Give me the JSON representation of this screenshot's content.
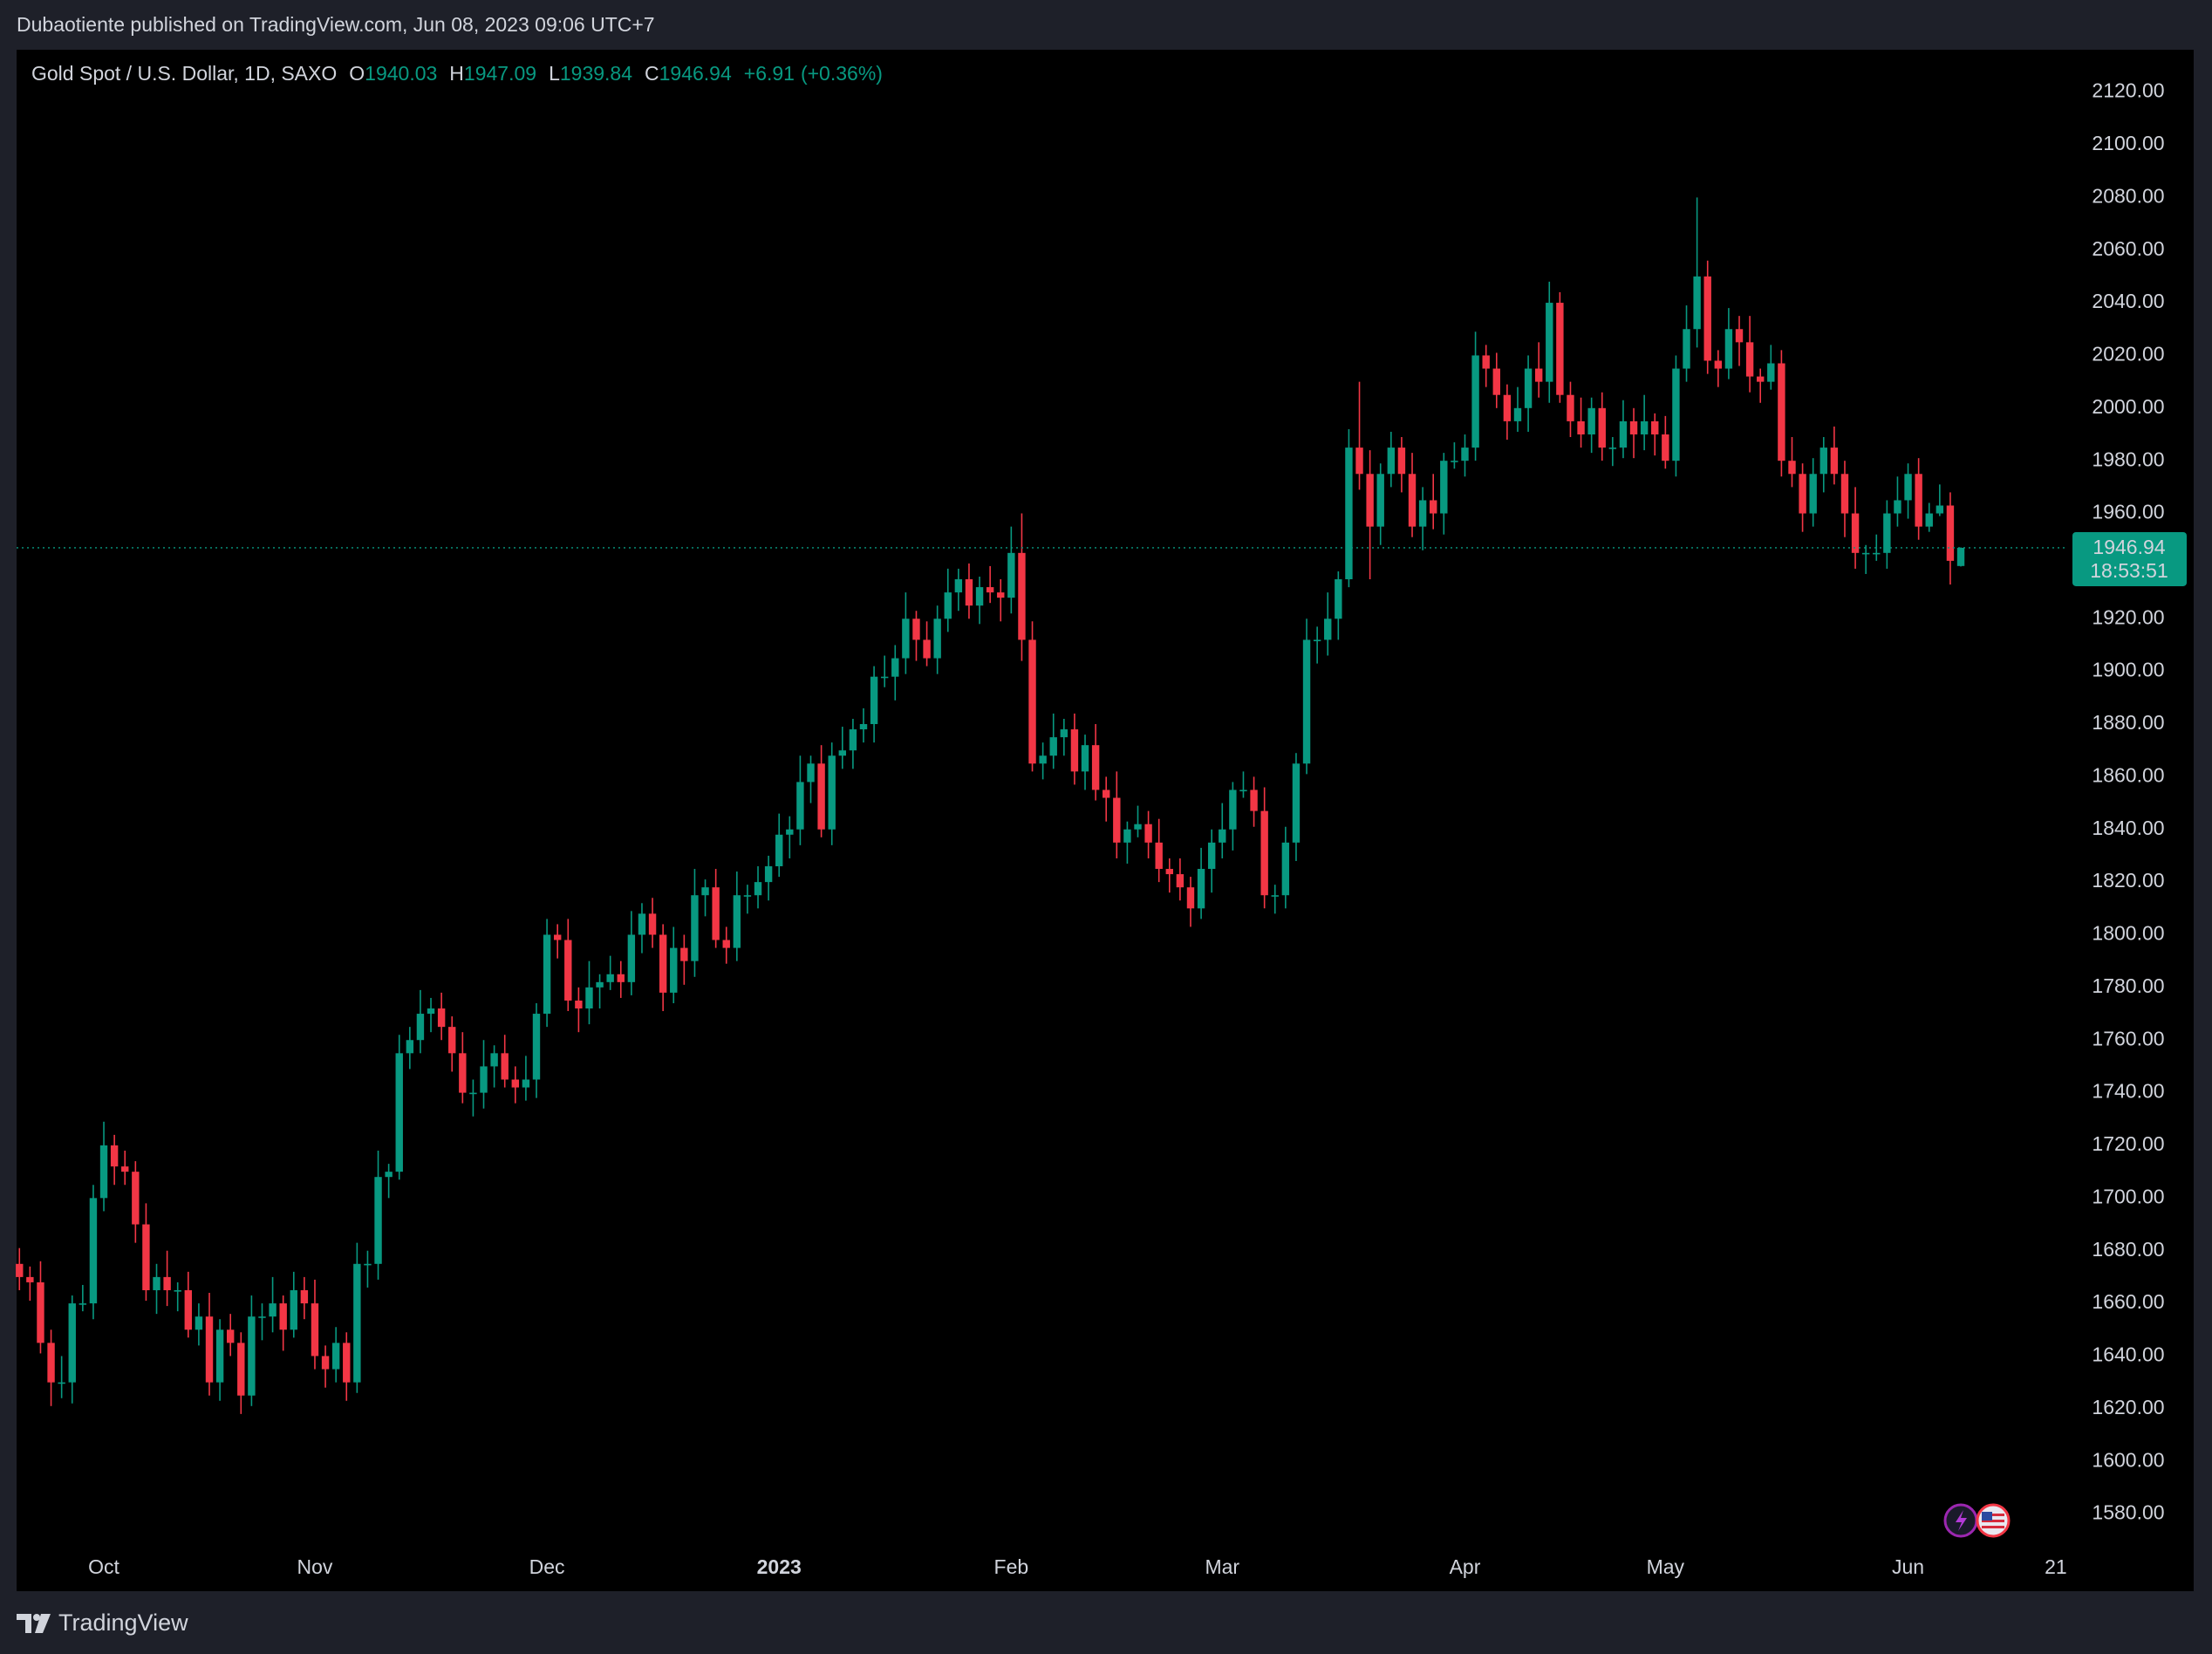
{
  "header": {
    "published": "Dubaotiente published on TradingView.com, Jun 08, 2023 09:06 UTC+7"
  },
  "footer": {
    "brand": "TradingView"
  },
  "chart_data": {
    "type": "candlestick",
    "title": "Gold Spot / U.S. Dollar, 1D, SAXO",
    "legend_labels": [
      "O",
      "H",
      "L",
      "C"
    ],
    "change": "+6.91",
    "change_percent": "(+0.36%)",
    "countdown": "18:53:51",
    "up_color": "#089981",
    "down_color": "#f23645",
    "open": [
      1675,
      1670,
      1668,
      1645,
      1630,
      1630,
      1660,
      1660,
      1700,
      1720,
      1712,
      1710,
      1690,
      1665,
      1670,
      1665,
      1665,
      1650,
      1655,
      1630,
      1650,
      1645,
      1625,
      1655,
      1655,
      1660,
      1650,
      1665,
      1660,
      1640,
      1635,
      1645,
      1630,
      1675,
      1675,
      1708,
      1710,
      1755,
      1760,
      1770,
      1772,
      1765,
      1755,
      1740,
      1740,
      1750,
      1755,
      1745,
      1742,
      1745,
      1770,
      1800,
      1798,
      1775,
      1772,
      1780,
      1782,
      1785,
      1782,
      1800,
      1808,
      1800,
      1778,
      1795,
      1790,
      1815,
      1818,
      1798,
      1795,
      1815,
      1815,
      1820,
      1826,
      1838,
      1840,
      1858,
      1865,
      1840,
      1868,
      1870,
      1878,
      1880,
      1898,
      1898,
      1905,
      1920,
      1912,
      1905,
      1920,
      1930,
      1935,
      1925,
      1932,
      1930,
      1928,
      1945,
      1912,
      1865,
      1868,
      1875,
      1878,
      1862,
      1872,
      1855,
      1852,
      1835,
      1840,
      1842,
      1835,
      1825,
      1823,
      1818,
      1810,
      1825,
      1835,
      1840,
      1855,
      1855,
      1847,
      1815,
      1815,
      1835,
      1865,
      1912,
      1912,
      1920,
      1935,
      1985,
      1975,
      1955,
      1975,
      1985,
      1975,
      1955,
      1965,
      1960,
      1980,
      1980,
      1985,
      2020,
      2015,
      2005,
      1995,
      2000,
      2015,
      2010,
      2040,
      2005,
      1995,
      1990,
      2000,
      1985,
      1985,
      1995,
      1990,
      1995,
      1990,
      1980,
      2015,
      2030,
      2050,
      2018,
      2015,
      2030,
      2025,
      2012,
      2010,
      2017,
      1980,
      1975,
      1960,
      1975,
      1985,
      1975,
      1960,
      1945,
      1945,
      1945,
      1960,
      1965,
      1975,
      1955,
      1960,
      1963,
      1940.03
    ],
    "high": [
      1681,
      1674,
      1676,
      1650,
      1640,
      1663,
      1667,
      1705,
      1729,
      1724,
      1718,
      1714,
      1698,
      1675,
      1680,
      1668,
      1672,
      1660,
      1664,
      1654,
      1656,
      1649,
      1663,
      1660,
      1670,
      1663,
      1672,
      1670,
      1669,
      1644,
      1651,
      1649,
      1683,
      1680,
      1718,
      1713,
      1762,
      1765,
      1779,
      1776,
      1778,
      1769,
      1763,
      1745,
      1760,
      1758,
      1762,
      1750,
      1754,
      1774,
      1806,
      1804,
      1806,
      1780,
      1790,
      1785,
      1792,
      1790,
      1809,
      1812,
      1814,
      1804,
      1803,
      1800,
      1825,
      1821,
      1825,
      1803,
      1824,
      1819,
      1826,
      1830,
      1846,
      1845,
      1868,
      1868,
      1872,
      1873,
      1879,
      1882,
      1886,
      1902,
      1906,
      1910,
      1930,
      1923,
      1919,
      1925,
      1939,
      1939,
      1941,
      1936,
      1940,
      1935,
      1955,
      1960,
      1919,
      1873,
      1884,
      1882,
      1884,
      1876,
      1880,
      1860,
      1862,
      1843,
      1849,
      1847,
      1844,
      1829,
      1829,
      1822,
      1833,
      1840,
      1850,
      1858,
      1862,
      1860,
      1856,
      1819,
      1841,
      1869,
      1920,
      1917,
      1930,
      1938,
      1992,
      2010,
      1984,
      1979,
      1991,
      1989,
      1983,
      1970,
      1975,
      1983,
      1987,
      1990,
      2029,
      2024,
      2021,
      2009,
      2008,
      2020,
      2025,
      2048,
      2044,
      2010,
      2004,
      2004,
      2006,
      1989,
      2003,
      2000,
      2005,
      1998,
      1997,
      2020,
      2039,
      2080,
      2056,
      2022,
      2038,
      2035,
      2035,
      2015,
      2024,
      2022,
      1989,
      1979,
      1981,
      1989,
      1993,
      1980,
      1970,
      1948,
      1952,
      1965,
      1974,
      1979,
      1981,
      1964,
      1971,
      1968,
      1947.09
    ],
    "low": [
      1665,
      1661,
      1641,
      1621,
      1624,
      1622,
      1657,
      1654,
      1695,
      1705,
      1705,
      1683,
      1661,
      1656,
      1659,
      1657,
      1647,
      1644,
      1625,
      1623,
      1640,
      1618,
      1621,
      1646,
      1649,
      1642,
      1647,
      1654,
      1635,
      1628,
      1630,
      1623,
      1626,
      1666,
      1669,
      1700,
      1707,
      1749,
      1755,
      1763,
      1760,
      1748,
      1736,
      1731,
      1734,
      1742,
      1742,
      1736,
      1737,
      1738,
      1765,
      1791,
      1771,
      1763,
      1766,
      1772,
      1779,
      1776,
      1777,
      1793,
      1795,
      1771,
      1774,
      1781,
      1784,
      1807,
      1795,
      1789,
      1790,
      1808,
      1810,
      1813,
      1822,
      1829,
      1834,
      1850,
      1837,
      1834,
      1863,
      1863,
      1873,
      1873,
      1894,
      1889,
      1899,
      1904,
      1902,
      1899,
      1915,
      1923,
      1920,
      1918,
      1926,
      1919,
      1922,
      1904,
      1862,
      1859,
      1863,
      1868,
      1857,
      1855,
      1851,
      1843,
      1829,
      1827,
      1837,
      1829,
      1820,
      1816,
      1813,
      1803,
      1806,
      1816,
      1829,
      1832,
      1852,
      1841,
      1810,
      1808,
      1810,
      1828,
      1861,
      1903,
      1906,
      1912,
      1932,
      1969,
      1935,
      1948,
      1970,
      1968,
      1951,
      1946,
      1954,
      1952,
      1977,
      1974,
      1980,
      2008,
      2000,
      1988,
      1991,
      1991,
      2004,
      2002,
      2002,
      1989,
      1985,
      1983,
      1980,
      1978,
      1981,
      1981,
      1984,
      1982,
      1977,
      1974,
      2010,
      2023,
      2013,
      2008,
      2011,
      2016,
      2006,
      2002,
      2007,
      1974,
      1970,
      1953,
      1955,
      1968,
      1971,
      1951,
      1939,
      1937,
      1942,
      1939,
      1955,
      1958,
      1950,
      1953,
      1959,
      1933,
      1939.84
    ],
    "close": [
      1670,
      1668,
      1645,
      1630,
      1630,
      1660,
      1660,
      1700,
      1720,
      1712,
      1710,
      1690,
      1665,
      1670,
      1665,
      1665,
      1650,
      1655,
      1630,
      1650,
      1645,
      1625,
      1655,
      1655,
      1660,
      1650,
      1665,
      1660,
      1640,
      1635,
      1645,
      1630,
      1675,
      1675,
      1708,
      1710,
      1755,
      1760,
      1770,
      1772,
      1765,
      1755,
      1740,
      1740,
      1750,
      1755,
      1745,
      1742,
      1745,
      1770,
      1800,
      1798,
      1775,
      1772,
      1780,
      1782,
      1785,
      1782,
      1800,
      1808,
      1800,
      1778,
      1795,
      1790,
      1815,
      1818,
      1798,
      1795,
      1815,
      1815,
      1820,
      1826,
      1838,
      1840,
      1858,
      1865,
      1840,
      1868,
      1870,
      1878,
      1880,
      1898,
      1898,
      1905,
      1920,
      1912,
      1905,
      1920,
      1930,
      1935,
      1925,
      1932,
      1930,
      1928,
      1945,
      1912,
      1865,
      1868,
      1875,
      1878,
      1862,
      1872,
      1855,
      1852,
      1835,
      1840,
      1842,
      1835,
      1825,
      1823,
      1818,
      1810,
      1825,
      1835,
      1840,
      1855,
      1855,
      1847,
      1815,
      1815,
      1835,
      1865,
      1912,
      1912,
      1920,
      1935,
      1985,
      1975,
      1955,
      1975,
      1985,
      1975,
      1955,
      1965,
      1960,
      1980,
      1980,
      1985,
      2020,
      2015,
      2005,
      1995,
      2000,
      2015,
      2010,
      2040,
      2005,
      1995,
      1990,
      2000,
      1985,
      1985,
      1995,
      1990,
      1995,
      1990,
      1980,
      2015,
      2030,
      2050,
      2018,
      2015,
      2030,
      2025,
      2012,
      2010,
      2017,
      1980,
      1975,
      1960,
      1975,
      1985,
      1975,
      1960,
      1945,
      1945,
      1945,
      1960,
      1965,
      1975,
      1955,
      1960,
      1963,
      1942,
      1946.94
    ],
    "xlim": [
      -0.27,
      194
    ],
    "xticks": [
      {
        "value": 8,
        "label": "Oct"
      },
      {
        "value": 28,
        "label": "Nov"
      },
      {
        "value": 50,
        "label": "Dec"
      },
      {
        "value": 72,
        "label": "2023",
        "bold": true
      },
      {
        "value": 94,
        "label": "Feb"
      },
      {
        "value": 114,
        "label": "Mar"
      },
      {
        "value": 137,
        "label": "Apr"
      },
      {
        "value": 156,
        "label": "May"
      },
      {
        "value": 179,
        "label": "Jun"
      },
      {
        "value": 193,
        "label": "21"
      }
    ],
    "ylim": [
      1566.6,
      2136.1
    ],
    "yticks": [
      {
        "value": 1580,
        "label": "1580.00"
      },
      {
        "value": 1600,
        "label": "1600.00"
      },
      {
        "value": 1620,
        "label": "1620.00"
      },
      {
        "value": 1640,
        "label": "1640.00"
      },
      {
        "value": 1660,
        "label": "1660.00"
      },
      {
        "value": 1680,
        "label": "1680.00"
      },
      {
        "value": 1700,
        "label": "1700.00"
      },
      {
        "value": 1720,
        "label": "1720.00"
      },
      {
        "value": 1740,
        "label": "1740.00"
      },
      {
        "value": 1760,
        "label": "1760.00"
      },
      {
        "value": 1780,
        "label": "1780.00"
      },
      {
        "value": 1800,
        "label": "1800.00"
      },
      {
        "value": 1820,
        "label": "1820.00"
      },
      {
        "value": 1840,
        "label": "1840.00"
      },
      {
        "value": 1860,
        "label": "1860.00"
      },
      {
        "value": 1880,
        "label": "1880.00"
      },
      {
        "value": 1900,
        "label": "1900.00"
      },
      {
        "value": 1920,
        "label": "1920.00"
      },
      {
        "value": 1960,
        "label": "1960.00"
      },
      {
        "value": 1980,
        "label": "1980.00"
      },
      {
        "value": 2000,
        "label": "2000.00"
      },
      {
        "value": 2020,
        "label": "2020.00"
      },
      {
        "value": 2040,
        "label": "2040.00"
      },
      {
        "value": 2060,
        "label": "2060.00"
      },
      {
        "value": 2080,
        "label": "2080.00"
      },
      {
        "value": 2100,
        "label": "2100.00"
      },
      {
        "value": 2120,
        "label": "2120.00"
      }
    ],
    "grid": false
  }
}
